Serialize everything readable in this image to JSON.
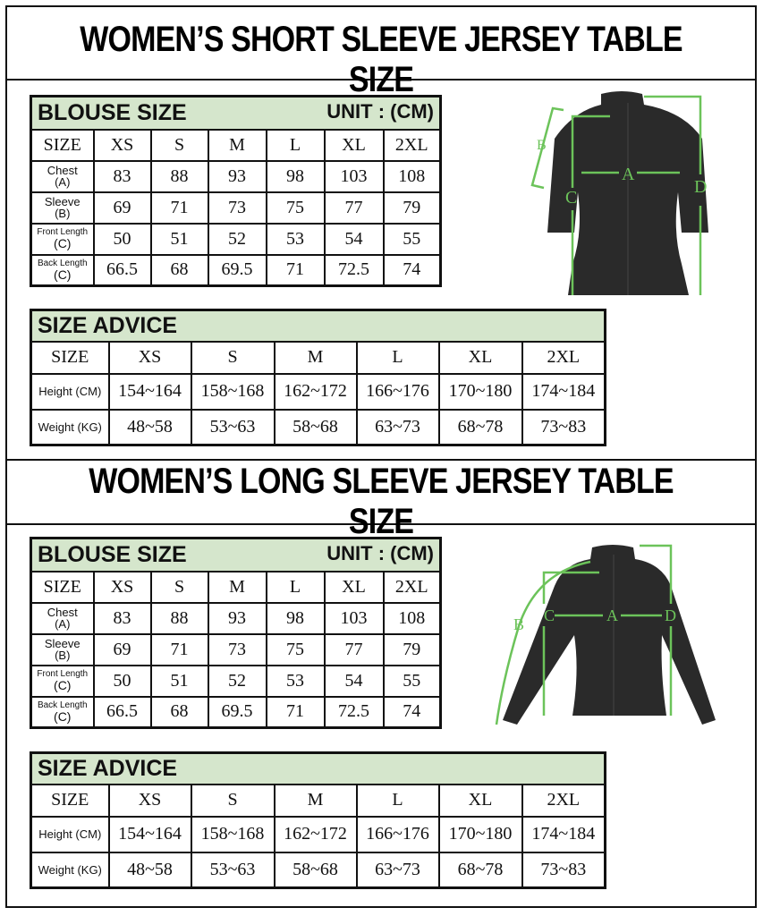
{
  "sections": [
    {
      "title": "WOMEN’S SHORT SLEEVE  JERSEY TABLE SIZE",
      "blouse": {
        "title": "BLOUSE SIZE",
        "unit": "UNIT : (CM)",
        "sizes": [
          "SIZE",
          "XS",
          "S",
          "M",
          "L",
          "XL",
          "2XL"
        ],
        "rows": [
          {
            "label": "Chest",
            "sub": "(A)",
            "values": [
              "83",
              "88",
              "93",
              "98",
              "103",
              "108"
            ]
          },
          {
            "label": "Sleeve",
            "sub": "(B)",
            "values": [
              "69",
              "71",
              "73",
              "75",
              "77",
              "79"
            ]
          },
          {
            "label": "Front Length",
            "sub": "(C)",
            "values": [
              "50",
              "51",
              "52",
              "53",
              "54",
              "55"
            ]
          },
          {
            "label": "Back Length",
            "sub": "(C)",
            "values": [
              "66.5",
              "68",
              "69.5",
              "71",
              "72.5",
              "74"
            ]
          }
        ]
      },
      "advice": {
        "title": "SIZE ADVICE",
        "sizes": [
          "SIZE",
          "XS",
          "S",
          "M",
          "L",
          "XL",
          "2XL"
        ],
        "rows": [
          {
            "label": "Height (CM)",
            "values": [
              "154~164",
              "158~168",
              "162~172",
              "166~176",
              "170~180",
              "174~184"
            ]
          },
          {
            "label": "Weight (KG)",
            "values": [
              "48~58",
              "53~63",
              "58~68",
              "63~73",
              "68~78",
              "73~83"
            ]
          }
        ]
      },
      "diagram_labels": [
        "A",
        "B",
        "C",
        "D"
      ]
    },
    {
      "title": "WOMEN’S LONG SLEEVE  JERSEY TABLE SIZE",
      "blouse": {
        "title": "BLOUSE SIZE",
        "unit": "UNIT : (CM)",
        "sizes": [
          "SIZE",
          "XS",
          "S",
          "M",
          "L",
          "XL",
          "2XL"
        ],
        "rows": [
          {
            "label": "Chest",
            "sub": "(A)",
            "values": [
              "83",
              "88",
              "93",
              "98",
              "103",
              "108"
            ]
          },
          {
            "label": "Sleeve",
            "sub": "(B)",
            "values": [
              "69",
              "71",
              "73",
              "75",
              "77",
              "79"
            ]
          },
          {
            "label": "Front Length",
            "sub": "(C)",
            "values": [
              "50",
              "51",
              "52",
              "53",
              "54",
              "55"
            ]
          },
          {
            "label": "Back Length",
            "sub": "(C)",
            "values": [
              "66.5",
              "68",
              "69.5",
              "71",
              "72.5",
              "74"
            ]
          }
        ]
      },
      "advice": {
        "title": "SIZE ADVICE",
        "sizes": [
          "SIZE",
          "XS",
          "S",
          "M",
          "L",
          "XL",
          "2XL"
        ],
        "rows": [
          {
            "label": "Height (CM)",
            "values": [
              "154~164",
              "158~168",
              "162~172",
              "166~176",
              "170~180",
              "174~184"
            ]
          },
          {
            "label": "Weight (KG)",
            "values": [
              "48~58",
              "53~63",
              "58~68",
              "63~73",
              "68~78",
              "73~83"
            ]
          }
        ]
      },
      "diagram_labels": [
        "A",
        "B",
        "C",
        "D"
      ]
    }
  ],
  "colors": {
    "header_bg": "#d5e6cc",
    "measure_line": "#6cc35a",
    "jersey": "#2a2a2a",
    "border": "#111111"
  }
}
